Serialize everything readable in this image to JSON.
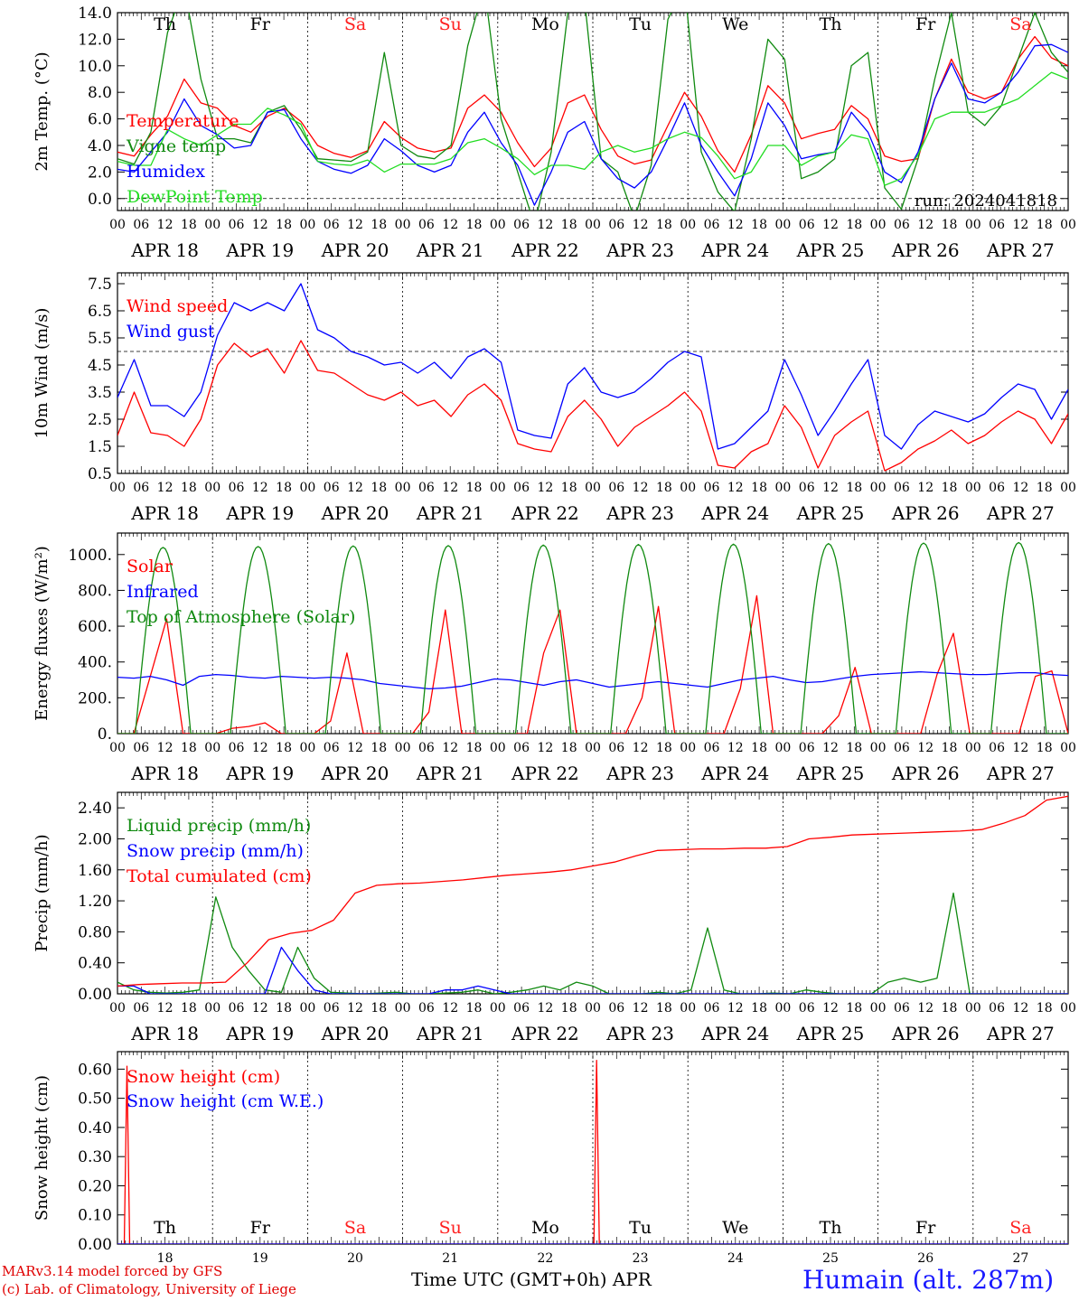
{
  "colors": {
    "red": "#ff0000",
    "dark_green": "#108a10",
    "blue": "#0000ff",
    "light_green": "#22dd22",
    "weekday": "#000000",
    "weekend": "#ff2020",
    "station": "#1a1aff"
  },
  "days": [
    "APR 18",
    "APR 19",
    "APR 20",
    "APR 21",
    "APR 22",
    "APR 23",
    "APR 24",
    "APR 25",
    "APR 26",
    "APR 27"
  ],
  "weekdays": [
    "Th",
    "Fr",
    "Sa",
    "Su",
    "Mo",
    "Tu",
    "We",
    "Th",
    "Fr",
    "Sa"
  ],
  "weekend_flags": [
    false,
    false,
    true,
    true,
    false,
    false,
    false,
    false,
    false,
    true
  ],
  "hour_labels": [
    "00",
    "06",
    "12",
    "18"
  ],
  "last_hour_label": "00",
  "day_numbers": [
    "18",
    "19",
    "20",
    "21",
    "22",
    "23",
    "24",
    "25",
    "26",
    "27"
  ],
  "footer": {
    "model": "MARv3.14 model forced by GFS",
    "copyright": "(c) Lab. of Climatology, University of Liege",
    "xlabel": "Time UTC (GMT+0h) APR",
    "station": "Humain (alt. 287m)"
  },
  "chart_data": [
    {
      "type": "line",
      "ylabel": "2m Temp. (°C)",
      "ylim": [
        -0.9,
        14.0
      ],
      "yticks": [
        0.0,
        2.0,
        4.0,
        6.0,
        8.0,
        10.0,
        12.0,
        14.0
      ],
      "ytick_labels": [
        "0.0",
        "2.0",
        "4.0",
        "6.0",
        "8.0",
        "10.0",
        "12.0",
        "14.0"
      ],
      "reference_line": 0.0,
      "annotation": "run: 2024041818",
      "show_weekdays": true,
      "x": {
        "start_day": 18,
        "step_hours": 6,
        "unit": "day of April (UTC)"
      },
      "series": [
        {
          "name": "Temperature",
          "color": "#ff0000",
          "values": [
            3.5,
            3.2,
            4.8,
            6.2,
            9.0,
            7.2,
            6.8,
            5.5,
            5.0,
            6.2,
            6.8,
            5.8,
            4.0,
            3.4,
            3.1,
            3.6,
            5.8,
            4.6,
            3.8,
            3.5,
            3.8,
            6.8,
            7.8,
            6.5,
            4.2,
            2.4,
            3.8,
            7.2,
            7.8,
            5.2,
            3.2,
            2.6,
            2.9,
            5.5,
            8.0,
            6.2,
            3.6,
            2.0,
            4.8,
            8.5,
            7.2,
            4.5,
            4.9,
            5.2,
            7.0,
            6.0,
            3.2,
            2.8,
            3.0,
            7.5,
            10.5,
            8.0,
            7.5,
            8.0,
            10.5,
            12.2,
            10.6,
            10.0
          ]
        },
        {
          "name": "Vigne temp",
          "color": "#108a10",
          "values": [
            3.0,
            2.6,
            5.0,
            12.5,
            16.0,
            9.0,
            4.5,
            4.5,
            4.2,
            6.5,
            7.0,
            5.2,
            3.0,
            2.9,
            2.8,
            3.5,
            11.0,
            4.0,
            3.2,
            3.0,
            4.0,
            11.5,
            16.0,
            6.0,
            2.0,
            -2.0,
            3.5,
            14.0,
            15.0,
            3.0,
            2.0,
            -1.5,
            2.5,
            13.5,
            16.0,
            3.5,
            0.5,
            -1.0,
            4.5,
            12.0,
            10.5,
            1.5,
            2.0,
            3.0,
            10.0,
            11.0,
            0.8,
            -0.8,
            3.0,
            9.0,
            14.0,
            6.5,
            5.5,
            7.0,
            10.5,
            14.0,
            11.0,
            9.5
          ]
        },
        {
          "name": "Humidex",
          "color": "#0000ff",
          "values": [
            2.2,
            2.0,
            3.5,
            5.0,
            7.5,
            5.5,
            4.8,
            3.8,
            4.0,
            6.5,
            6.7,
            4.5,
            2.8,
            2.2,
            1.9,
            2.5,
            4.5,
            3.6,
            2.5,
            2.0,
            2.5,
            5.0,
            6.5,
            4.2,
            2.5,
            -0.5,
            2.0,
            5.0,
            5.8,
            3.0,
            1.5,
            0.8,
            2.0,
            4.5,
            7.2,
            4.0,
            2.0,
            0.2,
            3.0,
            7.2,
            5.5,
            3.0,
            3.3,
            3.5,
            6.5,
            5.0,
            2.0,
            1.2,
            3.5,
            7.5,
            10.2,
            7.5,
            7.2,
            8.0,
            9.5,
            11.5,
            11.6,
            11.0
          ]
        },
        {
          "name": "DewPoint Temp",
          "color": "#22dd22",
          "values": [
            2.8,
            2.5,
            2.5,
            5.2,
            4.5,
            4.0,
            4.8,
            5.6,
            5.6,
            6.8,
            6.3,
            5.6,
            2.8,
            2.6,
            2.5,
            2.9,
            2.0,
            2.6,
            2.6,
            2.6,
            3.0,
            4.2,
            4.5,
            3.8,
            3.0,
            1.8,
            2.5,
            2.5,
            2.2,
            3.5,
            4.0,
            3.5,
            3.8,
            4.5,
            5.0,
            4.6,
            3.2,
            1.5,
            2.0,
            4.0,
            4.0,
            2.5,
            3.2,
            3.5,
            4.8,
            4.5,
            1.0,
            1.5,
            3.3,
            6.0,
            6.5,
            6.5,
            6.5,
            7.0,
            7.5,
            8.5,
            9.5,
            9.0
          ]
        }
      ]
    },
    {
      "type": "line",
      "ylabel": "10m Wind (m/s)",
      "ylim": [
        0.5,
        7.9
      ],
      "yticks": [
        0.5,
        1.5,
        2.5,
        3.5,
        4.5,
        5.5,
        6.5,
        7.5
      ],
      "ytick_labels": [
        "0.5",
        "1.5",
        "2.5",
        "3.5",
        "4.5",
        "5.5",
        "6.5",
        "7.5"
      ],
      "reference_line": 5.0,
      "x": {
        "start_day": 18,
        "step_hours": 6,
        "unit": "day of April (UTC)"
      },
      "series": [
        {
          "name": "Wind speed",
          "color": "#ff0000",
          "values": [
            1.9,
            3.5,
            2.0,
            1.9,
            1.5,
            2.5,
            4.5,
            5.3,
            4.8,
            5.1,
            4.2,
            5.4,
            4.3,
            4.2,
            3.8,
            3.4,
            3.2,
            3.5,
            3.0,
            3.2,
            2.6,
            3.4,
            3.8,
            3.2,
            1.6,
            1.4,
            1.3,
            2.6,
            3.2,
            2.5,
            1.5,
            2.2,
            2.6,
            3.0,
            3.5,
            2.8,
            0.8,
            0.7,
            1.3,
            1.6,
            3.0,
            2.2,
            0.7,
            1.9,
            2.4,
            2.8,
            0.6,
            0.9,
            1.4,
            1.7,
            2.1,
            1.6,
            1.9,
            2.4,
            2.8,
            2.5,
            1.6,
            2.7
          ]
        },
        {
          "name": "Wind gust",
          "color": "#0000ff",
          "values": [
            3.3,
            4.7,
            3.0,
            3.0,
            2.6,
            3.5,
            5.6,
            6.8,
            6.5,
            6.8,
            6.5,
            7.5,
            5.8,
            5.5,
            5.0,
            4.8,
            4.5,
            4.6,
            4.2,
            4.6,
            4.0,
            4.8,
            5.1,
            4.6,
            2.1,
            1.9,
            1.8,
            3.8,
            4.4,
            3.5,
            3.3,
            3.5,
            4.0,
            4.6,
            5.0,
            4.8,
            1.4,
            1.6,
            2.2,
            2.8,
            4.7,
            3.4,
            1.9,
            2.8,
            3.8,
            4.7,
            1.9,
            1.4,
            2.3,
            2.8,
            2.6,
            2.4,
            2.7,
            3.3,
            3.8,
            3.6,
            2.5,
            3.6
          ]
        }
      ]
    },
    {
      "type": "line",
      "ylabel": "Energy fluxes (W/m²)",
      "ylim": [
        0,
        1120
      ],
      "yticks": [
        0,
        200,
        400,
        600,
        800,
        1000
      ],
      "ytick_labels": [
        "0.",
        "200.",
        "400.",
        "600.",
        "800.",
        "1000."
      ],
      "x": {
        "start_day": 18,
        "step_hours": 6,
        "unit": "day of April (UTC)"
      },
      "series": [
        {
          "name": "Solar",
          "color": "#ff0000",
          "values": [
            0,
            0,
            320,
            640,
            0,
            0,
            0,
            30,
            40,
            60,
            0,
            0,
            0,
            70,
            450,
            0,
            0,
            0,
            0,
            120,
            690,
            0,
            0,
            0,
            0,
            0,
            450,
            690,
            0,
            0,
            0,
            0,
            200,
            710,
            0,
            0,
            0,
            0,
            250,
            770,
            0,
            0,
            0,
            0,
            100,
            370,
            0,
            0,
            0,
            0,
            330,
            560,
            0,
            0,
            0,
            0,
            320,
            350,
            0
          ]
        },
        {
          "name": "Infrared",
          "color": "#0000ff",
          "values": [
            315,
            310,
            320,
            300,
            270,
            320,
            330,
            325,
            315,
            310,
            320,
            315,
            310,
            315,
            310,
            300,
            280,
            270,
            260,
            250,
            255,
            265,
            285,
            305,
            300,
            285,
            270,
            290,
            300,
            280,
            260,
            270,
            280,
            290,
            280,
            270,
            260,
            280,
            300,
            310,
            320,
            300,
            285,
            290,
            305,
            320,
            330,
            335,
            340,
            345,
            340,
            335,
            330,
            330,
            335,
            340,
            340,
            330,
            325
          ]
        },
        {
          "name": "Top of Atmosphere (Solar)",
          "color": "#108a10",
          "sunrise_hour": 4.5,
          "sunset_hour": 18.5,
          "daily_peak": [
            1040,
            1045,
            1048,
            1050,
            1053,
            1056,
            1058,
            1061,
            1064,
            1067
          ]
        }
      ]
    },
    {
      "type": "line",
      "ylabel": "Precip (mm/h)",
      "ylim": [
        0.0,
        2.6
      ],
      "yticks": [
        0.0,
        0.4,
        0.8,
        1.2,
        1.6,
        2.0,
        2.4
      ],
      "ytick_labels": [
        "0.00",
        "0.40",
        "0.80",
        "1.20",
        "1.60",
        "2.00",
        "2.40"
      ],
      "x": {
        "start_day": 18,
        "step_hours": 6,
        "unit": "day of April (UTC)"
      },
      "series": [
        {
          "name": "Liquid precip (mm/h)",
          "color": "#108a10",
          "values": [
            0.15,
            0.05,
            0.02,
            0.01,
            0.02,
            0.05,
            1.25,
            0.6,
            0.3,
            0.05,
            0.02,
            0.6,
            0.2,
            0.02,
            0.01,
            0.0,
            0.01,
            0.02,
            0.0,
            0.0,
            0.01,
            0.02,
            0.05,
            0.0,
            0.02,
            0.05,
            0.1,
            0.05,
            0.15,
            0.1,
            0.0,
            0.0,
            0.0,
            0.02,
            0.0,
            0.05,
            0.85,
            0.05,
            0.0,
            0.0,
            0.01,
            0.0,
            0.05,
            0.02,
            0.0,
            0.0,
            0.0,
            0.15,
            0.2,
            0.15,
            0.2,
            1.3,
            0.0,
            0.0,
            0.0,
            0.0,
            0.0,
            0.0,
            0.0
          ]
        },
        {
          "name": "Snow precip (mm/h)",
          "color": "#0000ff",
          "values": [
            0.1,
            0.1,
            0.0,
            0.0,
            0.0,
            0.0,
            0.0,
            0.0,
            0.0,
            0.0,
            0.6,
            0.3,
            0.05,
            0.0,
            0.0,
            0.0,
            0.0,
            0.0,
            0.0,
            0.0,
            0.05,
            0.05,
            0.1,
            0.05,
            0.0,
            0.0,
            0.0,
            0.0,
            0.0,
            0.0,
            0.0,
            0.0,
            0.0,
            0.0,
            0.0,
            0.0,
            0.0,
            0.0,
            0.0,
            0.0,
            0.0,
            0.0,
            0.0,
            0.0,
            0.0,
            0.0,
            0.0,
            0.0,
            0.0,
            0.0,
            0.0,
            0.0,
            0.0,
            0.0,
            0.0,
            0.0,
            0.0,
            0.0,
            0.0
          ]
        },
        {
          "name": "Total cumulated (cm)",
          "color": "#ff0000",
          "values": [
            0.1,
            0.12,
            0.13,
            0.14,
            0.14,
            0.15,
            0.4,
            0.7,
            0.78,
            0.82,
            0.95,
            1.3,
            1.4,
            1.42,
            1.43,
            1.45,
            1.47,
            1.5,
            1.53,
            1.55,
            1.57,
            1.6,
            1.65,
            1.7,
            1.78,
            1.85,
            1.86,
            1.87,
            1.87,
            1.88,
            1.88,
            1.9,
            2.0,
            2.02,
            2.05,
            2.06,
            2.07,
            2.08,
            2.09,
            2.1,
            2.12,
            2.2,
            2.3,
            2.5,
            2.55
          ]
        }
      ]
    },
    {
      "type": "line",
      "ylabel": "Snow height (cm)",
      "ylim": [
        0.0,
        0.66
      ],
      "yticks": [
        0.0,
        0.1,
        0.2,
        0.3,
        0.4,
        0.5,
        0.6
      ],
      "ytick_labels": [
        "0.00",
        "0.10",
        "0.20",
        "0.30",
        "0.40",
        "0.50",
        "0.60"
      ],
      "show_weekdays_bottom": true,
      "x": {
        "start_day": 18,
        "step_hours": 1,
        "unit": "day of April (UTC)"
      },
      "series": [
        {
          "name": "Snow height (cm)",
          "color": "#ff0000",
          "spikes": [
            {
              "day": 18.1,
              "value": 0.61
            },
            {
              "day": 23.04,
              "value": 0.63
            }
          ]
        },
        {
          "name": "Snow height (cm W.E.)",
          "color": "#0000ff",
          "values": [
            0.0
          ]
        }
      ]
    }
  ]
}
